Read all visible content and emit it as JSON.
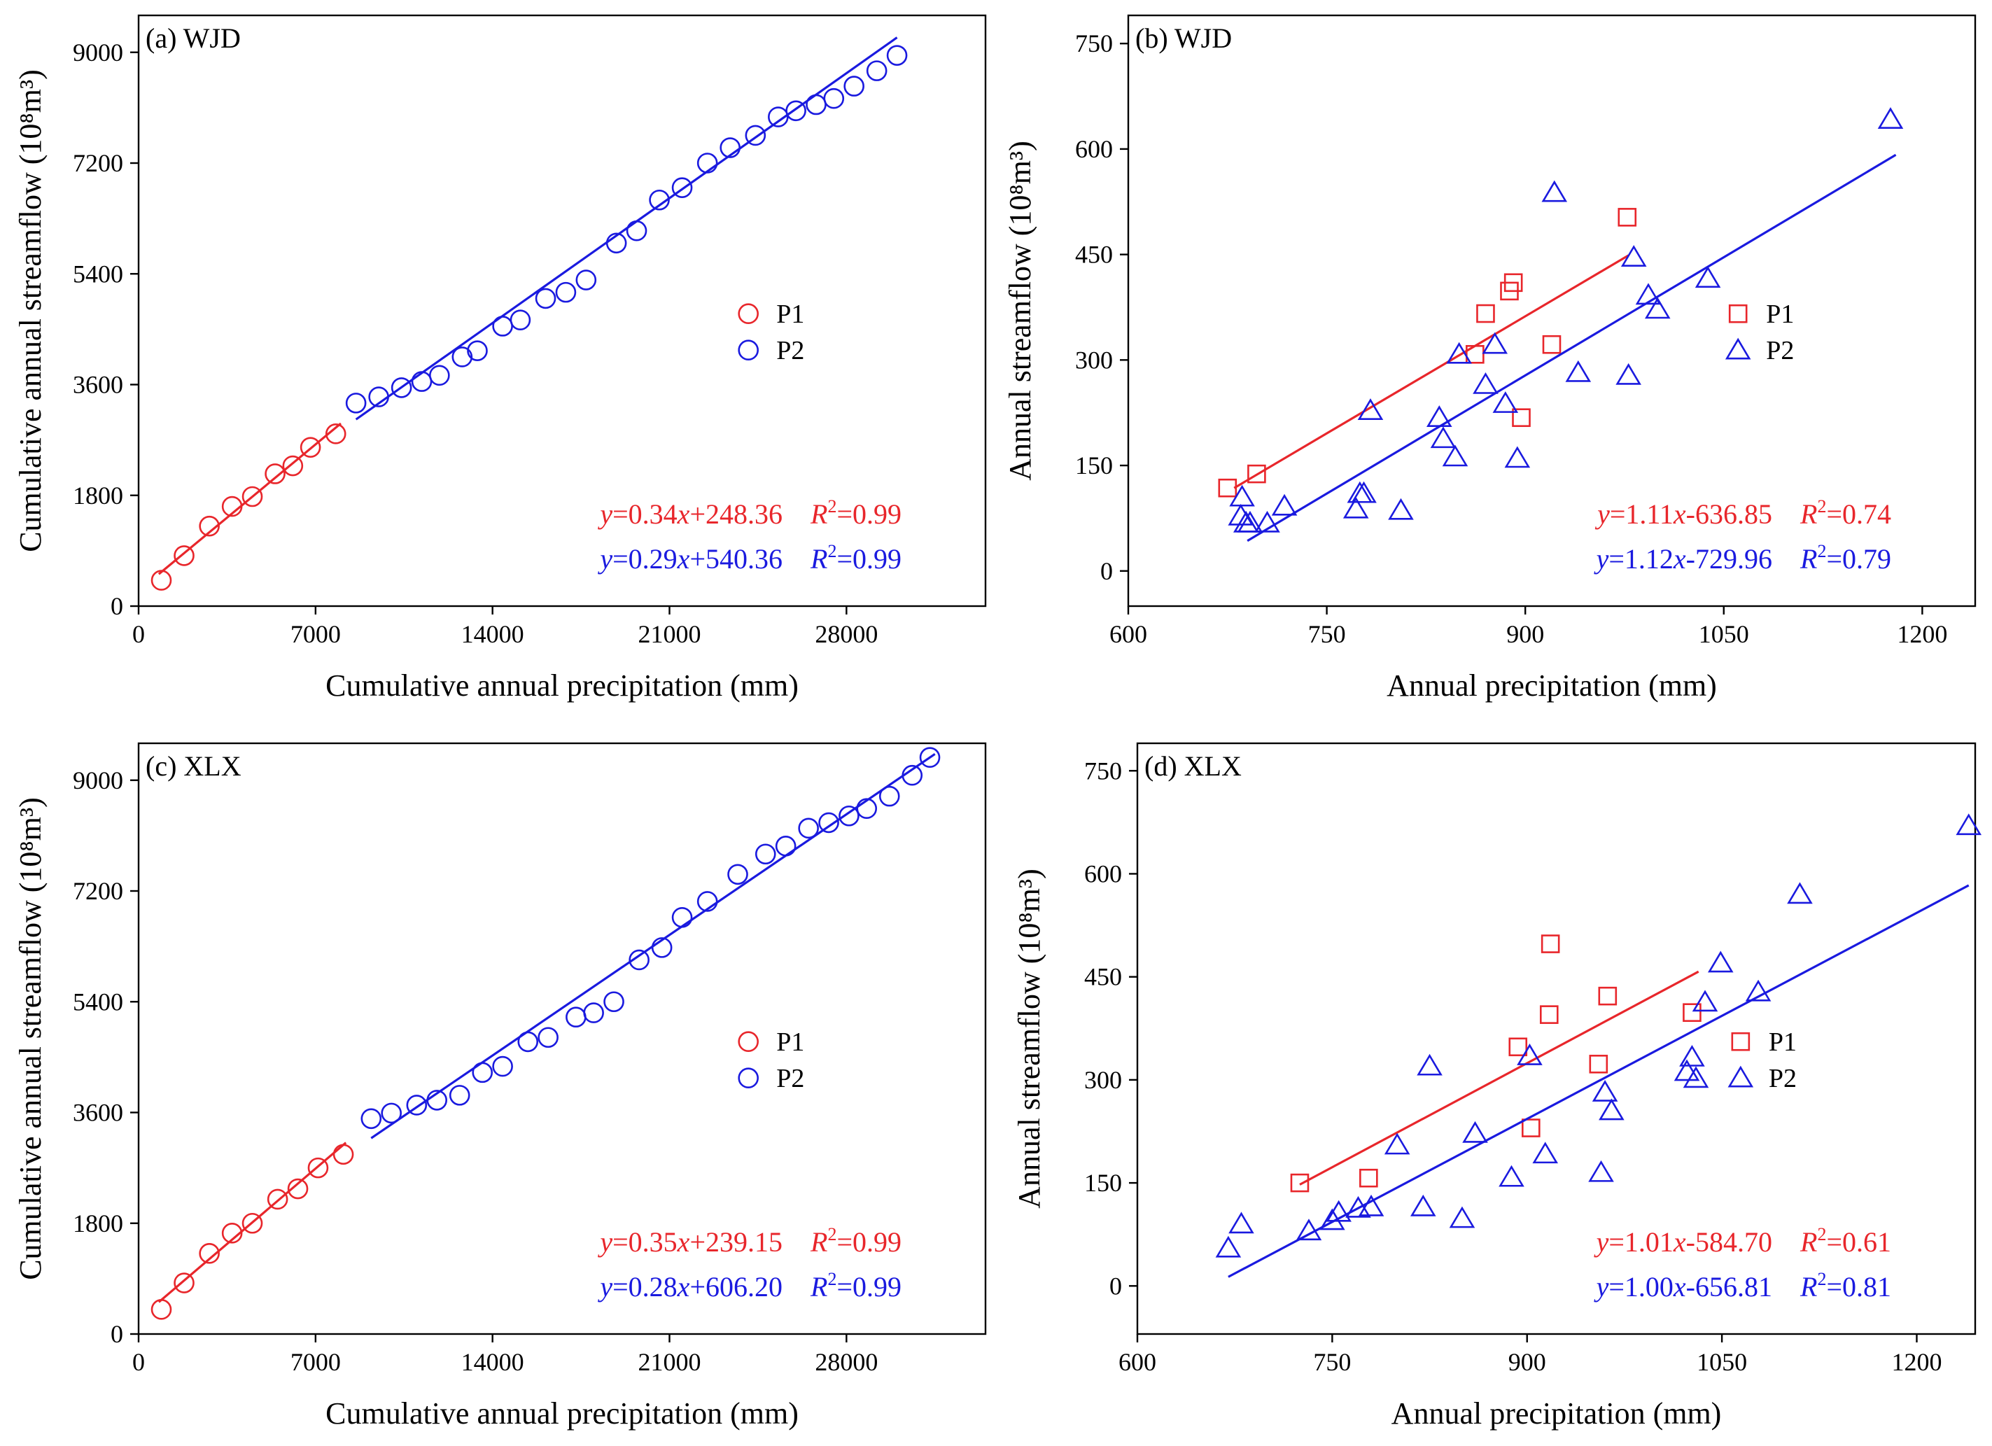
{
  "figure": {
    "colors": {
      "P1": "#e8262b",
      "P2": "#1a1adf",
      "axis": "#000000"
    }
  },
  "chart_data": [
    {
      "id": "a",
      "type": "scatter",
      "title": "(a) WJD",
      "xlabel": "Cumulative annual precipitation (mm)",
      "ylabel": "Cumulative annual streamflow (10⁸m³)",
      "xlim": [
        0,
        33500
      ],
      "ylim": [
        0,
        9600
      ],
      "xticks": [
        0,
        7000,
        14000,
        21000,
        28000
      ],
      "yticks": [
        0,
        1800,
        3600,
        5400,
        7200,
        9000
      ],
      "marker": "circle",
      "legend": {
        "position": "middle-right",
        "entries": [
          "P1",
          "P2"
        ]
      },
      "series": [
        {
          "name": "P1",
          "x": [
            900,
            1800,
            2800,
            3700,
            4500,
            5400,
            6100,
            6800,
            7800
          ],
          "y": [
            420,
            820,
            1300,
            1620,
            1780,
            2150,
            2280,
            2580,
            2800
          ],
          "fit": {
            "slope": 0.34,
            "intercept": 248.36,
            "xrange": [
              800,
              8000
            ]
          },
          "equation": {
            "y": "y",
            "body": "=0.34",
            "x": "x",
            "tail": "+248.36",
            "r": "R",
            "sup": "2",
            "val": "=0.99"
          }
        },
        {
          "name": "P2",
          "x": [
            8600,
            9500,
            10400,
            11200,
            11900,
            12800,
            13400,
            14400,
            15100,
            16100,
            16900,
            17700,
            18900,
            19700,
            20600,
            21500,
            22500,
            23400,
            24400,
            25300,
            26000,
            26800,
            27500,
            28300,
            29200,
            30000
          ],
          "y": [
            3300,
            3400,
            3550,
            3650,
            3750,
            4050,
            4150,
            4550,
            4650,
            5000,
            5100,
            5300,
            5900,
            6100,
            6600,
            6800,
            7200,
            7450,
            7650,
            7950,
            8050,
            8150,
            8250,
            8450,
            8700,
            8950
          ],
          "fit": {
            "slope": 0.29,
            "intercept": 540.36,
            "xrange": [
              8600,
              30000
            ]
          },
          "equation": {
            "y": "y",
            "body": "=0.29",
            "x": "x",
            "tail": "+540.36",
            "r": "R",
            "sup": "2",
            "val": "=0.99"
          }
        }
      ]
    },
    {
      "id": "b",
      "type": "scatter",
      "title": "(b) WJD",
      "xlabel": "Annual precipitation (mm)",
      "ylabel": "Annual streamflow (10⁸m³)",
      "xlim": [
        600,
        1240
      ],
      "ylim": [
        -50,
        790
      ],
      "xticks": [
        600,
        750,
        900,
        1050,
        1200
      ],
      "yticks": [
        0,
        150,
        300,
        450,
        600,
        750
      ],
      "legend": {
        "position": "middle-right",
        "entries": [
          "P1",
          "P2"
        ]
      },
      "series": [
        {
          "name": "P1",
          "marker": "square",
          "x": [
            675,
            697,
            862,
            870,
            888,
            891,
            897,
            920,
            977
          ],
          "y": [
            118,
            138,
            308,
            366,
            398,
            410,
            218,
            322,
            503
          ],
          "fit": {
            "slope": 1.11,
            "intercept": -636.85,
            "xrange": [
              680,
              978
            ]
          },
          "equation": {
            "y": "y",
            "body": "=1.11",
            "x": "x",
            "tail": "-636.85",
            "r": "R",
            "sup": "2",
            "val": "=0.74"
          }
        },
        {
          "name": "P2",
          "marker": "triangle",
          "x": [
            686,
            685,
            689,
            692,
            705,
            718,
            772,
            775,
            778,
            783,
            806,
            835,
            838,
            847,
            850,
            870,
            877,
            885,
            894,
            922,
            940,
            978,
            982,
            993,
            1000,
            1038,
            1176
          ],
          "y": [
            105,
            78,
            68,
            68,
            68,
            92,
            88,
            110,
            110,
            228,
            86,
            218,
            188,
            162,
            308,
            265,
            322,
            238,
            160,
            538,
            282,
            278,
            446,
            392,
            372,
            416,
            642
          ],
          "fit": {
            "slope": 1.12,
            "intercept": -729.96,
            "xrange": [
              690,
              1180
            ]
          },
          "equation": {
            "y": "y",
            "body": "=1.12",
            "x": "x",
            "tail": "-729.96",
            "r": "R",
            "sup": "2",
            "val": "=0.79"
          }
        }
      ]
    },
    {
      "id": "c",
      "type": "scatter",
      "title": "(c) XLX",
      "xlabel": "Cumulative annual precipitation (mm)",
      "ylabel": "Cumulative annual streamflow (10⁸m³)",
      "xlim": [
        0,
        33500
      ],
      "ylim": [
        0,
        9600
      ],
      "xticks": [
        0,
        7000,
        14000,
        21000,
        28000
      ],
      "yticks": [
        0,
        1800,
        3600,
        5400,
        7200,
        9000
      ],
      "marker": "circle",
      "legend": {
        "position": "middle-right",
        "entries": [
          "P1",
          "P2"
        ]
      },
      "series": [
        {
          "name": "P1",
          "x": [
            900,
            1800,
            2800,
            3700,
            4500,
            5500,
            6300,
            7100,
            8100
          ],
          "y": [
            400,
            830,
            1310,
            1640,
            1800,
            2190,
            2360,
            2700,
            2920
          ],
          "fit": {
            "slope": 0.35,
            "intercept": 239.15,
            "xrange": [
              800,
              8200
            ]
          },
          "equation": {
            "y": "y",
            "body": "=0.35",
            "x": "x",
            "tail": "+239.15",
            "r": "R",
            "sup": "2",
            "val": "=0.99"
          }
        },
        {
          "name": "P2",
          "x": [
            9200,
            10000,
            11000,
            11800,
            12700,
            13600,
            14400,
            15400,
            16200,
            17300,
            18000,
            18800,
            19800,
            20700,
            21500,
            22500,
            23700,
            24800,
            25600,
            26500,
            27300,
            28100,
            28800,
            29700,
            30600,
            31300
          ],
          "y": [
            3500,
            3590,
            3720,
            3800,
            3880,
            4250,
            4350,
            4750,
            4820,
            5150,
            5220,
            5400,
            6080,
            6280,
            6770,
            7030,
            7470,
            7800,
            7930,
            8220,
            8310,
            8420,
            8540,
            8740,
            9080,
            9370
          ],
          "fit": {
            "slope": 0.28,
            "intercept": 606.2,
            "xrange": [
              9200,
              31500
            ]
          },
          "equation": {
            "y": "y",
            "body": "=0.28",
            "x": "x",
            "tail": "+606.20",
            "r": "R",
            "sup": "2",
            "val": "=0.99"
          }
        }
      ]
    },
    {
      "id": "d",
      "type": "scatter",
      "title": "(d) XLX",
      "xlabel": "Annual precipitation (mm)",
      "ylabel": "Annual streamflow (10⁸m³)",
      "xlim": [
        600,
        1245
      ],
      "ylim": [
        -70,
        790
      ],
      "xticks": [
        600,
        750,
        900,
        1050,
        1200
      ],
      "yticks": [
        0,
        150,
        300,
        450,
        600,
        750
      ],
      "legend": {
        "position": "middle-right",
        "entries": [
          "P1",
          "P2"
        ]
      },
      "series": [
        {
          "name": "P1",
          "marker": "square",
          "x": [
            725,
            778,
            893,
            903,
            917,
            918,
            955,
            962,
            1027
          ],
          "y": [
            150,
            157,
            348,
            230,
            395,
            498,
            323,
            422,
            398
          ],
          "fit": {
            "slope": 1.01,
            "intercept": -584.7,
            "xrange": [
              725,
              1032
            ]
          },
          "equation": {
            "y": "y",
            "body": "=1.01",
            "x": "x",
            "tail": "-584.70",
            "r": "R",
            "sup": "2",
            "val": "=0.61"
          }
        },
        {
          "name": "P2",
          "marker": "triangle",
          "x": [
            670,
            680,
            732,
            750,
            755,
            770,
            780,
            800,
            820,
            825,
            850,
            860,
            888,
            902,
            914,
            957,
            960,
            965,
            1023,
            1027,
            1030,
            1037,
            1049,
            1078,
            1110,
            1240
          ],
          "y": [
            55,
            90,
            80,
            95,
            107,
            113,
            115,
            205,
            115,
            320,
            98,
            222,
            158,
            335,
            192,
            165,
            282,
            255,
            312,
            333,
            302,
            413,
            470,
            428,
            570,
            670
          ],
          "fit": {
            "slope": 1.0,
            "intercept": -656.81,
            "xrange": [
              670,
              1240
            ]
          },
          "equation": {
            "y": "y",
            "body": "=1.00",
            "x": "x",
            "tail": "-656.81",
            "r": "R",
            "sup": "2",
            "val": "=0.81"
          }
        }
      ]
    }
  ]
}
